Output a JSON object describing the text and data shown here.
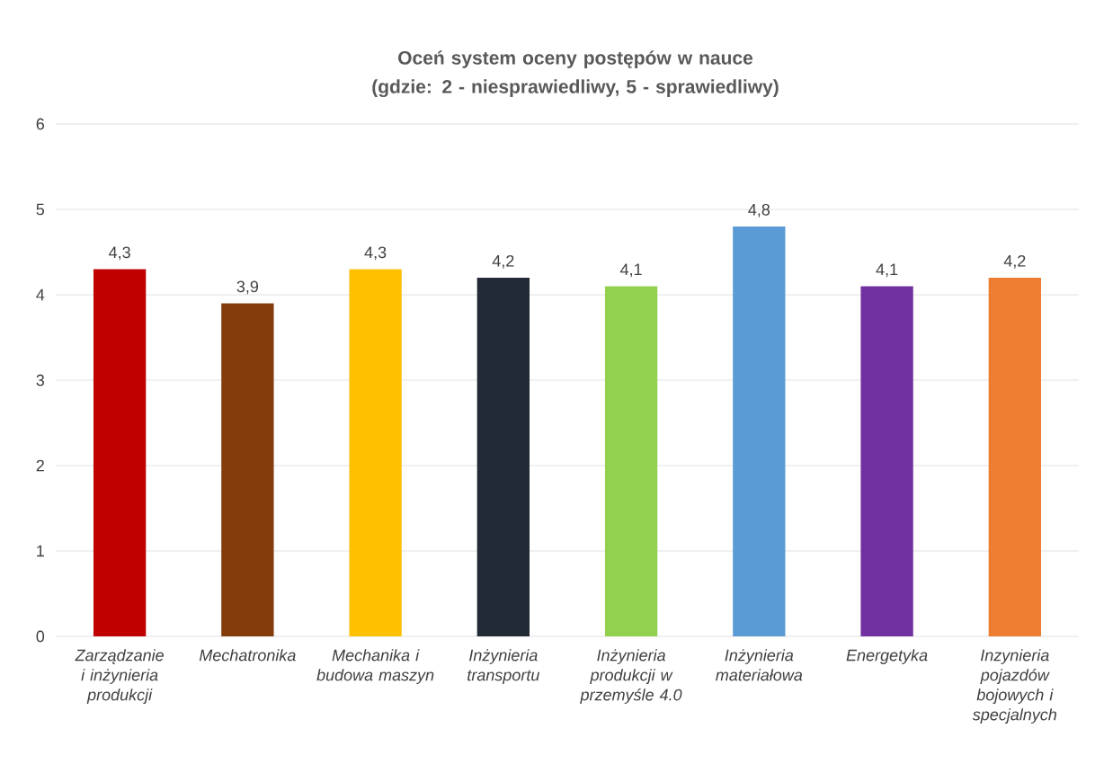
{
  "chart_data": {
    "type": "bar",
    "title": "Oceń system oceny postępów w nauce (gdzie: 2 - niesprawiedliwy, 5 - sprawiedliwy)",
    "categories": [
      "Zarządzanie i inżynieria produkcji",
      "Mechatronika",
      "Mechanika i budowa maszyn",
      "Inżynieria transportu",
      "Inżynieria produkcji w przemyśle 4.0",
      "Inżynieria materiałowa",
      "Energetyka",
      "Inzynieria pojazdów bojowych i specjalnych"
    ],
    "values": [
      4.3,
      3.9,
      4.3,
      4.2,
      4.1,
      4.8,
      4.1,
      4.2
    ],
    "value_labels": [
      "4,3",
      "3,9",
      "4,3",
      "4,2",
      "4,1",
      "4,8",
      "4,1",
      "4,2"
    ],
    "colors": [
      "#c00000",
      "#843c0c",
      "#ffc000",
      "#222a35",
      "#92d050",
      "#5b9bd5",
      "#7030a0",
      "#ed7d31"
    ],
    "ylim": [
      0,
      6
    ],
    "yticks": [
      0,
      1,
      2,
      3,
      4,
      5,
      6
    ],
    "grid": "y"
  }
}
